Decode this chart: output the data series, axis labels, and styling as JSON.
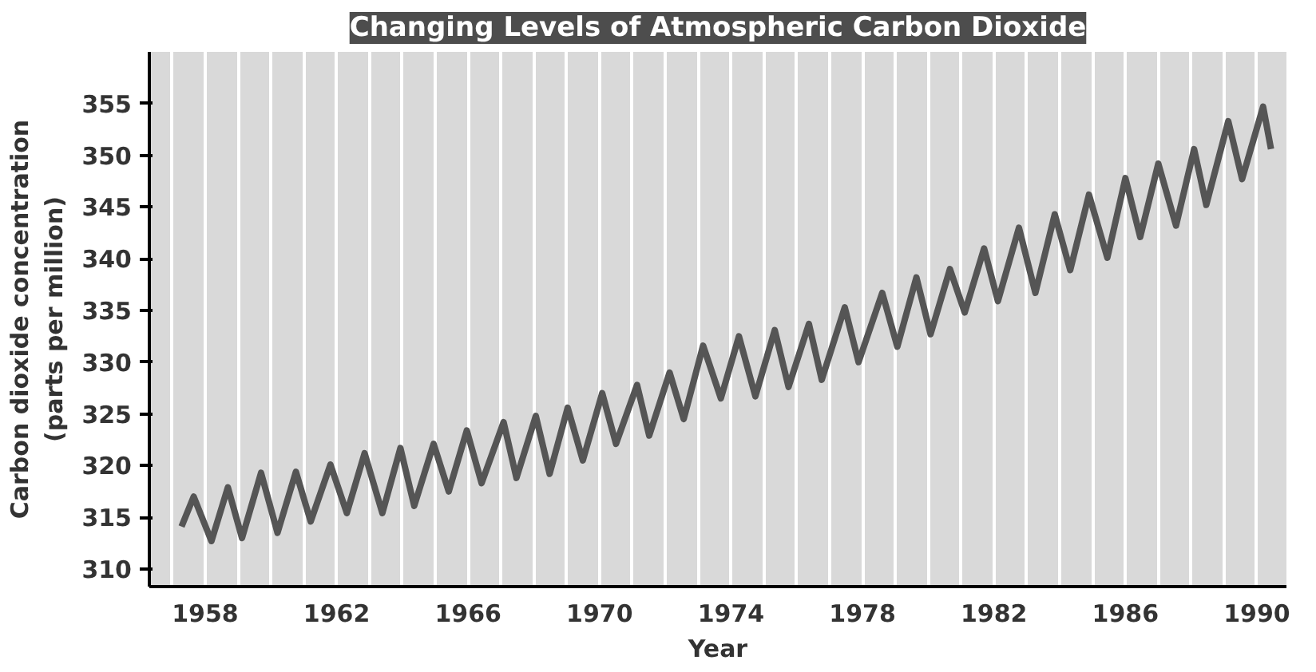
{
  "chart_data": {
    "type": "line",
    "title": "Changing Levels of Atmospheric Carbon Dioxide",
    "xlabel": "Year",
    "ylabel": "Carbon dioxide concentration\n(parts per million)",
    "series": [
      {
        "color": "#555555",
        "x": [
          1957.28,
          1957.65,
          1958.19,
          1958.69,
          1959.12,
          1959.7,
          1960.2,
          1960.76,
          1961.21,
          1961.81,
          1962.31,
          1962.85,
          1963.39,
          1963.94,
          1964.36,
          1964.95,
          1965.41,
          1965.96,
          1966.41,
          1967.08,
          1967.47,
          1968.06,
          1968.48,
          1969.03,
          1969.49,
          1970.08,
          1970.5,
          1971.14,
          1971.51,
          1972.13,
          1972.56,
          1973.15,
          1973.69,
          1974.24,
          1974.74,
          1975.33,
          1975.75,
          1976.37,
          1976.76,
          1977.46,
          1977.88,
          1978.6,
          1979.06,
          1979.64,
          1980.07,
          1980.66,
          1981.11,
          1981.7,
          1982.12,
          1982.76,
          1983.26,
          1983.85,
          1984.32,
          1984.89,
          1985.45,
          1986.0,
          1986.45,
          1987.0,
          1987.54,
          1988.09,
          1988.46,
          1989.13,
          1989.55,
          1990.19,
          1990.43
        ],
        "values": [
          314.1,
          317.0,
          312.7,
          317.9,
          313.0,
          319.3,
          313.5,
          319.4,
          314.6,
          320.1,
          315.4,
          321.2,
          315.4,
          321.7,
          316.1,
          322.1,
          317.5,
          323.4,
          318.3,
          324.2,
          318.8,
          324.8,
          319.2,
          325.6,
          320.5,
          327.0,
          322.1,
          327.8,
          322.9,
          329.0,
          324.5,
          331.6,
          326.5,
          332.5,
          326.7,
          333.1,
          327.6,
          333.7,
          328.3,
          335.3,
          330.0,
          336.7,
          331.5,
          338.2,
          332.7,
          339.0,
          334.8,
          341.0,
          335.9,
          343.0,
          336.7,
          344.3,
          338.9,
          346.2,
          340.1,
          347.8,
          342.1,
          349.2,
          343.2,
          350.6,
          345.2,
          353.3,
          347.7,
          354.7,
          350.6
        ]
      }
    ],
    "xlim": [
      1956.3,
      1990.9
    ],
    "ylim": [
      308.3,
      360
    ],
    "xticks": [
      {
        "value": 1957,
        "label": null
      },
      1958,
      {
        "value": 1959,
        "label": null
      },
      {
        "value": 1960,
        "label": null
      },
      {
        "value": 1961,
        "label": null
      },
      1962,
      {
        "value": 1963,
        "label": null
      },
      {
        "value": 1964,
        "label": null
      },
      {
        "value": 1965,
        "label": null
      },
      1966,
      {
        "value": 1967,
        "label": null
      },
      {
        "value": 1968,
        "label": null
      },
      {
        "value": 1969,
        "label": null
      },
      1970,
      {
        "value": 1971,
        "label": null
      },
      {
        "value": 1972,
        "label": null
      },
      {
        "value": 1973,
        "label": null
      },
      1974,
      {
        "value": 1975,
        "label": null
      },
      {
        "value": 1976,
        "label": null
      },
      {
        "value": 1977,
        "label": null
      },
      1978,
      {
        "value": 1979,
        "label": null
      },
      {
        "value": 1980,
        "label": null
      },
      {
        "value": 1981,
        "label": null
      },
      1982,
      {
        "value": 1983,
        "label": null
      },
      {
        "value": 1984,
        "label": null
      },
      {
        "value": 1985,
        "label": null
      },
      1986,
      {
        "value": 1987,
        "label": null
      },
      {
        "value": 1988,
        "label": null
      },
      {
        "value": 1989,
        "label": null
      },
      1990
    ],
    "yticks": [
      310,
      315,
      320,
      325,
      330,
      335,
      340,
      345,
      350,
      355
    ],
    "grid": "x",
    "marker": "none",
    "line_style": "solid"
  }
}
